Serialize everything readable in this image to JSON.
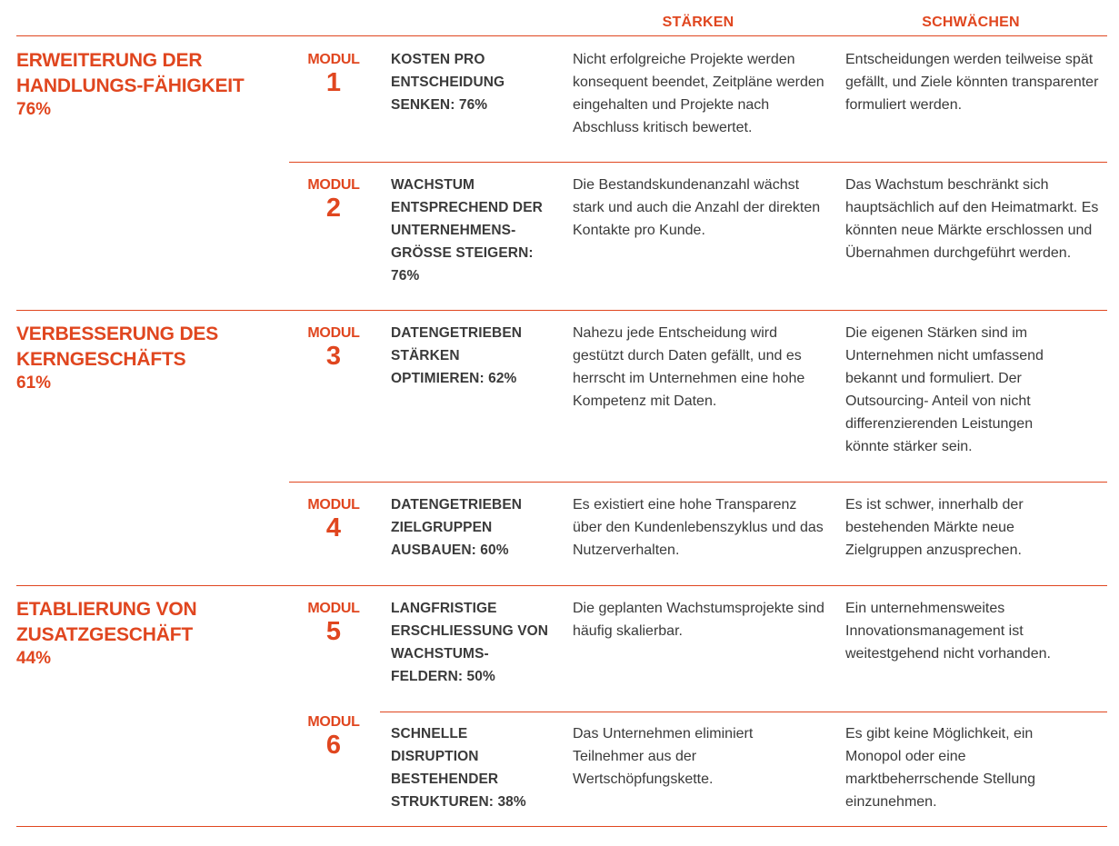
{
  "headers": {
    "staerken": "STÄRKEN",
    "schwaechen": "SCHWÄCHEN"
  },
  "sections": [
    {
      "title": "ERWEITERUNG DER HANDLUNGS-FÄHIGKEIT",
      "percent": "76%"
    },
    {
      "title": "VERBESSERUNG DES KERNGESCHÄFTS",
      "percent": "61%"
    },
    {
      "title": "ETABLIERUNG VON ZUSATZGESCHÄFT",
      "percent": "44%"
    }
  ],
  "module_label": "MODUL",
  "modules": [
    {
      "number": "1",
      "name": "KOSTEN PRO ENTSCHEIDUNG SENKEN: 76%",
      "staerken": "Nicht erfolgreiche Projekte werden konsequent beendet, Zeitpläne werden eingehalten und Projekte nach Abschluss kritisch bewertet.",
      "schwaechen": "Entscheidungen werden teilweise spät gefällt, und Ziele könnten transparenter formuliert werden."
    },
    {
      "number": "2",
      "name": "WACHSTUM ENTSPRECHEND DER UNTERNEHMENS-GRÖSSE STEIGERN: 76%",
      "staerken": "Die Bestandskundenanzahl wächst stark und auch die Anzahl der direkten Kontakte pro Kunde.",
      "schwaechen": "Das Wachstum beschränkt sich hauptsächlich auf den Heimatmarkt. Es könnten neue Märkte erschlossen und Übernahmen durchgeführt werden."
    },
    {
      "number": "3",
      "name": "DATENGETRIEBEN STÄRKEN OPTIMIEREN: 62%",
      "staerken": "Nahezu jede Entscheidung wird gestützt durch Daten gefällt, und es herrscht im Unternehmen eine hohe Kompetenz mit Daten.",
      "schwaechen": "Die eigenen Stärken sind im Unternehmen nicht umfassend bekannt und formuliert. Der Outsourcing- Anteil von nicht differenzierenden Leistungen könnte stärker sein."
    },
    {
      "number": "4",
      "name": "DATENGETRIEBEN ZIELGRUPPEN AUSBAUEN: 60%",
      "staerken": "Es existiert eine hohe Transparenz über den Kundenlebenszyklus und das Nutzerverhalten.",
      "schwaechen": "Es ist schwer, innerhalb der bestehenden Märkte neue Zielgruppen anzusprechen."
    },
    {
      "number": "5",
      "name": "LANGFRISTIGE ERSCHLIESSUNG VON WACHSTUMS-FELDERN: 50%",
      "staerken": "Die geplanten Wachstumsprojekte sind häufig skalierbar.",
      "schwaechen": "Ein unternehmensweites Innovationsmanagement ist weitestgehend nicht vorhanden."
    },
    {
      "number": "6",
      "name": "SCHNELLE DISRUPTION BESTEHENDER STRUKTUREN: 38%",
      "staerken": "Das Unternehmen eliminiert Teilnehmer aus der Wertschöpfungskette.",
      "schwaechen": "Es gibt keine Möglichkeit, ein Monopol oder eine marktbeherrschende Stellung einzunehmen."
    }
  ]
}
